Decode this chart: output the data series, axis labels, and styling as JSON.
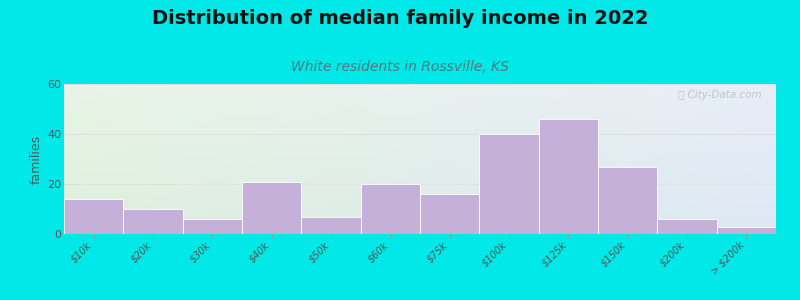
{
  "title": "Distribution of median family income in 2022",
  "subtitle": "White residents in Rossville, KS",
  "ylabel": "families",
  "categories": [
    "$10k",
    "$20k",
    "$30k",
    "$40k",
    "$50k",
    "$60k",
    "$75k",
    "$100k",
    "$125k",
    "$150k",
    "$200k",
    "> $200k"
  ],
  "values": [
    14,
    10,
    6,
    21,
    7,
    20,
    16,
    40,
    46,
    27,
    6,
    3
  ],
  "bar_color": "#c4b0d8",
  "bar_edge_color": "#ffffff",
  "ylim": [
    0,
    60
  ],
  "yticks": [
    0,
    20,
    40,
    60
  ],
  "background_outer": "#00e8e8",
  "bg_top_left": "#e8f5e4",
  "bg_top_right": "#e8eef8",
  "bg_bottom_left": "#d8efd8",
  "bg_bottom_right": "#dde8f5",
  "grid_color": "#e0e0e0",
  "title_fontsize": 14,
  "subtitle_fontsize": 10,
  "subtitle_color": "#557777",
  "ylabel_fontsize": 9,
  "tick_fontsize": 7,
  "watermark_text": "ⓘ City-Data.com",
  "watermark_color": "#b0c0c8"
}
